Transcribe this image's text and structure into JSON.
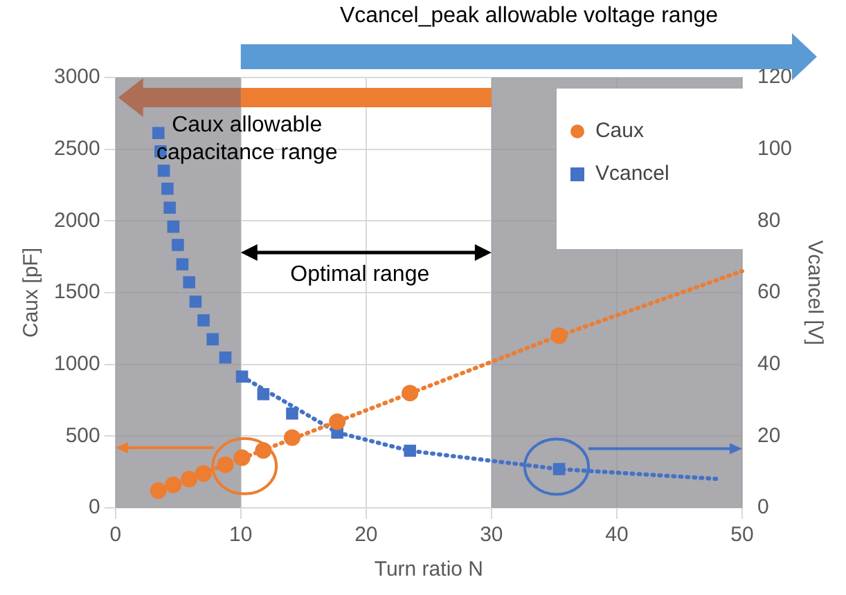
{
  "chart_data": {
    "type": "scatter",
    "xlabel": "Turn ratio N",
    "ylabel": "Caux [pF]",
    "y2label": "Vcancel [V]",
    "xlim": [
      0,
      50
    ],
    "xticks": [
      0,
      10,
      20,
      30,
      40,
      50
    ],
    "ylim": [
      0,
      3000
    ],
    "yticks": [
      0,
      500,
      1000,
      1500,
      2000,
      2500,
      3000
    ],
    "y2lim": [
      0,
      120
    ],
    "y2ticks": [
      0,
      20,
      40,
      60,
      80,
      100,
      120
    ],
    "grid": true,
    "legend": "top right",
    "series": [
      {
        "name": "Caux",
        "color": "#ed7d31",
        "marker": "circle",
        "x": [
          3.43,
          4.62,
          5.88,
          7.03,
          8.77,
          10.1,
          11.8,
          14.1,
          17.7,
          23.5,
          35.4
        ],
        "values": [
          120,
          160,
          200,
          240,
          300,
          350,
          400,
          490,
          600,
          800,
          1200
        ]
      },
      {
        "name": "Vcancel",
        "color": "#4472c4",
        "marker": "square",
        "axis": "y2",
        "x": [
          3.43,
          3.6,
          3.86,
          4.15,
          4.33,
          4.62,
          4.98,
          5.34,
          5.88,
          6.39,
          7.03,
          7.76,
          8.77,
          10.1,
          11.8,
          14.1,
          17.7,
          23.5,
          35.4
        ],
        "values": [
          104.5,
          99.4,
          94,
          89,
          83.7,
          78.4,
          73.3,
          67.9,
          62.9,
          57.5,
          52.3,
          47,
          41.9,
          36.6,
          31.7,
          26.3,
          21,
          15.9,
          10.8
        ]
      },
      {
        "type": "line",
        "color": "#ed7d31",
        "line_style": "dotted",
        "marker": "none",
        "x": [
          3.43,
          35.4,
          50
        ],
        "values": [
          120,
          1200,
          1650
        ]
      },
      {
        "type": "line",
        "color": "#4472c4",
        "line_style": "dotted",
        "marker": "none",
        "axis": "y2",
        "x": [
          10.1,
          17.7,
          23.5,
          35.4,
          48.3
        ],
        "values": [
          36.6,
          21,
          15.9,
          10.8,
          8
        ]
      }
    ],
    "bands": [
      {
        "axis": "x",
        "from": 0,
        "to": 10,
        "color": "#8e8e94"
      },
      {
        "axis": "x",
        "from": 30,
        "to": 50,
        "color": "#8e8e94"
      }
    ],
    "annotations": [
      "Vcancel_peak allowable voltage range",
      {
        "text": "Caux allowable capacitance range",
        "x": 0,
        "y": 2860
      },
      "Optimal range"
    ]
  }
}
